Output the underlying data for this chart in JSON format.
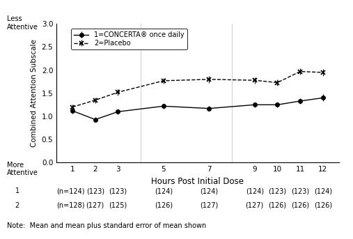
{
  "x": [
    1,
    2,
    3,
    5,
    7,
    9,
    10,
    11,
    12
  ],
  "concerta_y": [
    1.12,
    0.93,
    1.1,
    1.22,
    1.17,
    1.25,
    1.25,
    1.33,
    1.4
  ],
  "placebo_y": [
    1.2,
    1.35,
    1.52,
    1.77,
    1.8,
    1.78,
    1.73,
    1.97,
    1.95
  ],
  "concerta_err": [
    0.055,
    0.05,
    0.055,
    0.055,
    0.055,
    0.055,
    0.055,
    0.065,
    0.075
  ],
  "placebo_err": [
    0.055,
    0.06,
    0.065,
    0.065,
    0.07,
    0.065,
    0.065,
    0.065,
    0.075
  ],
  "ylabel": "Combined Attention Subscale",
  "xlabel": "Hours Post Initial Dose",
  "ylim": [
    0.0,
    3.0
  ],
  "yticks": [
    0.0,
    0.5,
    1.0,
    1.5,
    2.0,
    2.5,
    3.0
  ],
  "xticks": [
    1,
    2,
    3,
    5,
    7,
    9,
    10,
    11,
    12
  ],
  "legend1": "1=CONCERTA® once daily",
  "legend2": "2=Placebo",
  "vlines": [
    4,
    8
  ],
  "note": "Note:  Mean and mean plus standard error of mean shown",
  "less_attentive": "Less\nAttentive",
  "more_attentive": "More\nAttentive",
  "row1_label": "1",
  "row2_label": "2",
  "row1_n": "(n=124)",
  "row2_n": "(n=128)",
  "row1_vals": [
    "(123)",
    "(123)",
    "(124)",
    "(124)",
    "(124)",
    "(123)",
    "(123)",
    "(124)"
  ],
  "row2_vals": [
    "(127)",
    "(125)",
    "(126)",
    "(127)",
    "(127)",
    "(126)",
    "(126)",
    "(126)"
  ]
}
